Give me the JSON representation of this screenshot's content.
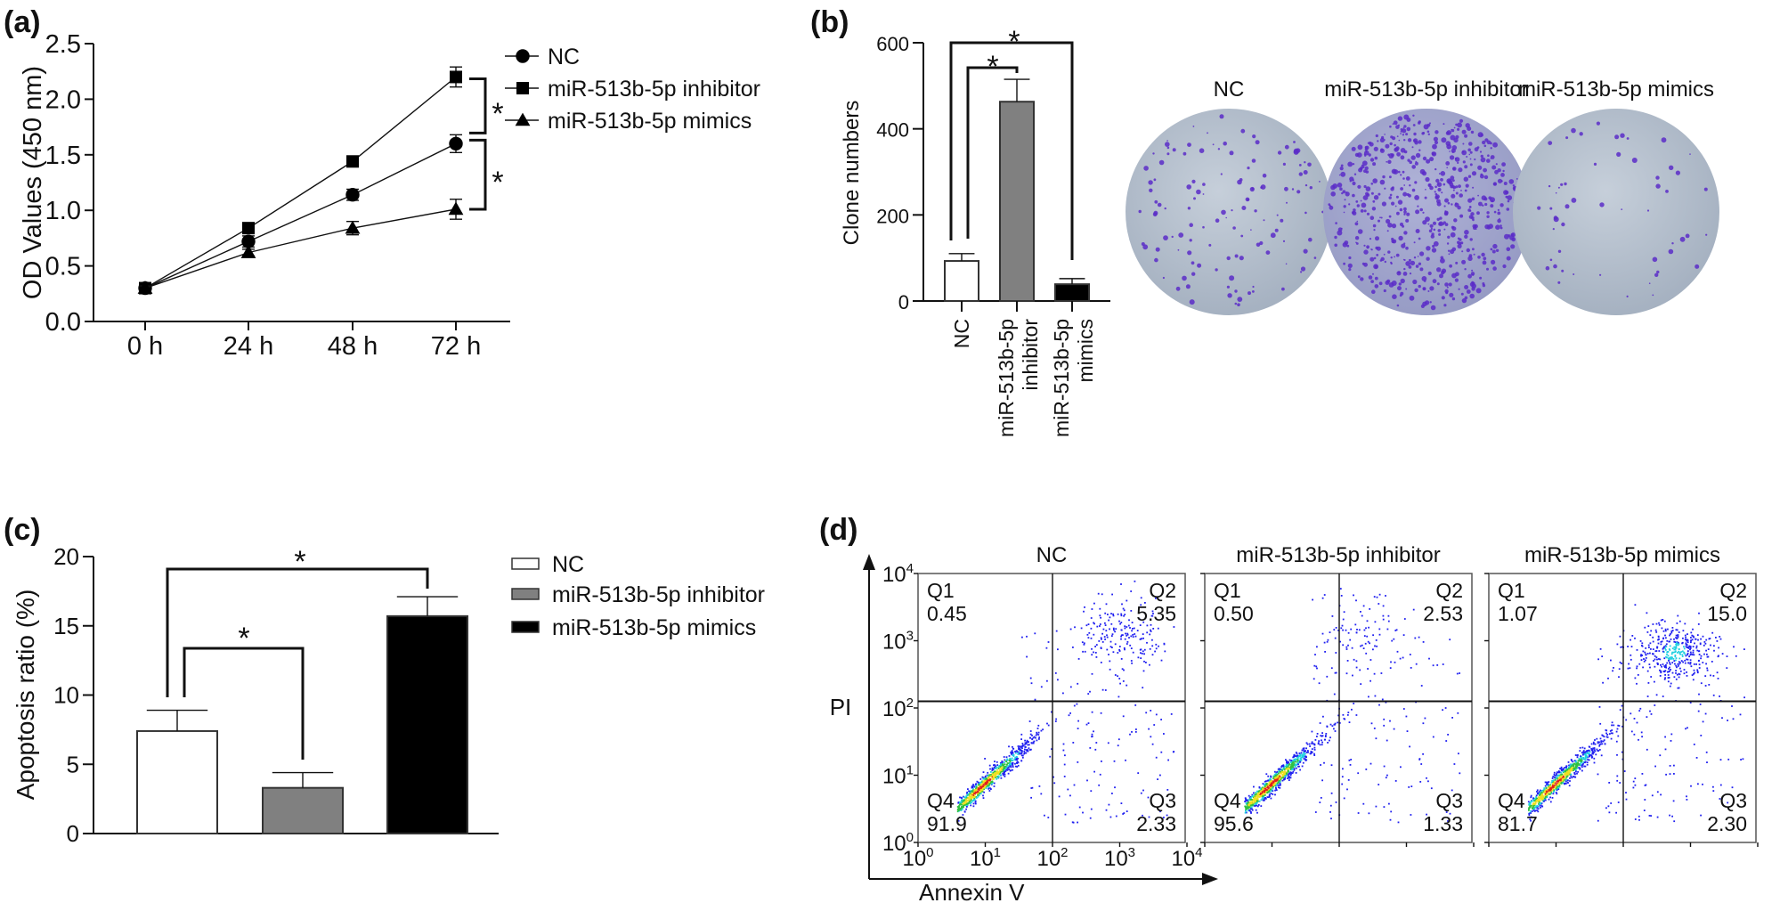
{
  "panel_labels": [
    "(a)",
    "(b)",
    "(c)",
    "(d)"
  ],
  "chart_data": [
    {
      "panel": "(a)",
      "type": "line",
      "title": "",
      "xlabel": "",
      "ylabel": "OD Values (450 nm)",
      "categories": [
        "0 h",
        "24 h",
        "48 h",
        "72 h"
      ],
      "ylim": [
        0,
        2.5
      ],
      "yticks": [
        "0.0",
        "0.5",
        "1.0",
        "1.5",
        "2.0",
        "2.5"
      ],
      "legend_position": "right",
      "series": [
        {
          "name": "NC",
          "marker": "circle",
          "values": [
            0.3,
            0.72,
            1.14,
            1.6
          ],
          "errors": [
            0.02,
            0.05,
            0.05,
            0.08
          ]
        },
        {
          "name": "miR-513b-5p inhibitor",
          "marker": "square",
          "values": [
            0.3,
            0.84,
            1.44,
            2.2
          ],
          "errors": [
            0.02,
            0.03,
            0.04,
            0.09
          ]
        },
        {
          "name": "miR-513b-5p mimics",
          "marker": "triangle",
          "values": [
            0.3,
            0.62,
            0.84,
            1.01
          ],
          "errors": [
            0.02,
            0.03,
            0.06,
            0.09
          ]
        }
      ],
      "significance": [
        {
          "between": [
            "miR-513b-5p inhibitor",
            "NC"
          ],
          "at": "72 h",
          "label": "*"
        },
        {
          "between": [
            "NC",
            "miR-513b-5p mimics"
          ],
          "at": "72 h",
          "label": "*"
        }
      ]
    },
    {
      "panel": "(b)",
      "type": "bar",
      "title": "",
      "xlabel": "",
      "ylabel": "Clone numbers",
      "categories": [
        "NC",
        "miR-513b-5p inhibitor",
        "miR-513b-5p mimics"
      ],
      "category_lines": [
        [
          "NC"
        ],
        [
          "miR-513b-5p",
          "inhibitor"
        ],
        [
          "miR-513b-5p",
          "mimics"
        ]
      ],
      "values": [
        93,
        463,
        39
      ],
      "errors": [
        17,
        52,
        13
      ],
      "fills": [
        "#ffffff",
        "#808080",
        "#000000"
      ],
      "ylim": [
        0,
        600
      ],
      "yticks": [
        "0",
        "200",
        "400",
        "600"
      ],
      "significance": [
        {
          "between": [
            0,
            1
          ],
          "label": "*"
        },
        {
          "between": [
            0,
            2
          ],
          "label": "*"
        }
      ],
      "plates": [
        {
          "title": "NC",
          "colony_density": 93
        },
        {
          "title": "miR-513b-5p inhibitor",
          "colony_density": 463
        },
        {
          "title": "miR-513b-5p mimics",
          "colony_density": 39
        }
      ],
      "plate_color": "#b9c3d0",
      "colony_color": "#5a2bc8"
    },
    {
      "panel": "(c)",
      "type": "bar",
      "title": "",
      "xlabel": "",
      "ylabel": "Apoptosis ratio (%)",
      "categories": [
        "NC",
        "miR-513b-5p inhibitor",
        "miR-513b-5p mimics"
      ],
      "values": [
        7.4,
        3.3,
        15.7
      ],
      "errors": [
        1.5,
        1.1,
        1.4
      ],
      "fills": [
        "#ffffff",
        "#808080",
        "#000000"
      ],
      "ylim": [
        0,
        20
      ],
      "yticks": [
        "0",
        "5",
        "10",
        "15",
        "20"
      ],
      "legend_position": "right",
      "significance": [
        {
          "between": [
            0,
            1
          ],
          "label": "*"
        },
        {
          "between": [
            0,
            2
          ],
          "label": "*"
        }
      ]
    },
    {
      "panel": "(d)",
      "type": "scatter",
      "xlabel": "Annexin V",
      "ylabel": "PI",
      "scale": "log10",
      "xlim_log": [
        0,
        4
      ],
      "ylim_log": [
        0,
        4
      ],
      "ticks": [
        {
          "base": "10",
          "exp": "0"
        },
        {
          "base": "10",
          "exp": "1"
        },
        {
          "base": "10",
          "exp": "2"
        },
        {
          "base": "10",
          "exp": "3"
        },
        {
          "base": "10",
          "exp": "4"
        }
      ],
      "gate_log": [
        2.0,
        2.1
      ],
      "quadrant_names": [
        "Q1",
        "Q2",
        "Q3",
        "Q4"
      ],
      "plots": [
        {
          "title": "NC",
          "Q1": "0.45",
          "Q2": "5.35",
          "Q3": "2.33",
          "Q4": "91.9"
        },
        {
          "title": "miR-513b-5p inhibitor",
          "Q1": "0.50",
          "Q2": "2.53",
          "Q3": "1.33",
          "Q4": "95.6"
        },
        {
          "title": "miR-513b-5p mimics",
          "Q1": "1.07",
          "Q2": "15.0",
          "Q3": "2.30",
          "Q4": "81.7"
        }
      ],
      "density_colors": [
        "#e0201a",
        "#f0e020",
        "#30c040",
        "#20d0e0",
        "#2020f0"
      ]
    }
  ]
}
